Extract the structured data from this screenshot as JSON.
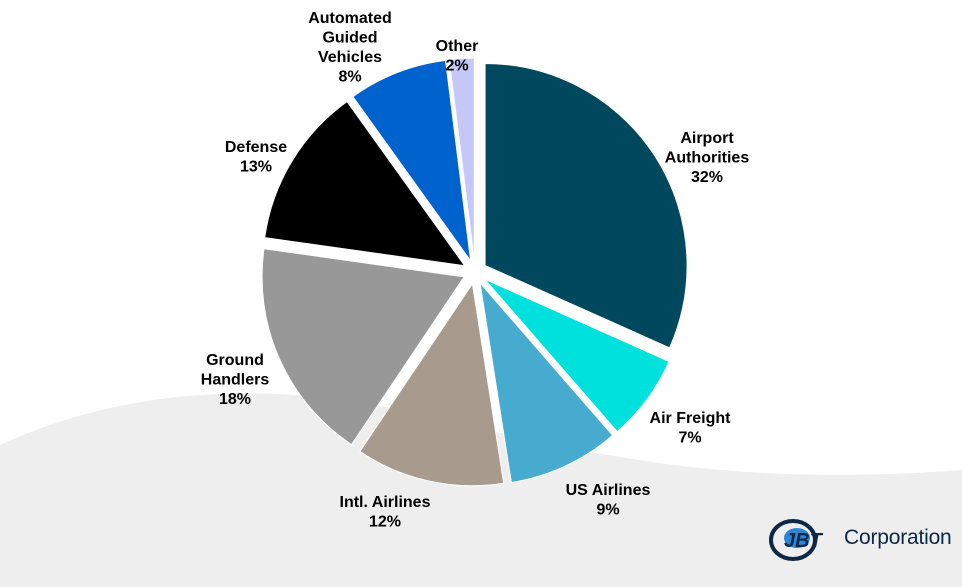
{
  "chart_data": {
    "type": "pie",
    "title": "",
    "exploded": true,
    "slices": [
      {
        "label": [
          "Airport",
          "Authorities"
        ],
        "value": 32,
        "percent_label": "32%",
        "color": "#00485E"
      },
      {
        "label": [
          "Air Freight"
        ],
        "value": 7,
        "percent_label": "7%",
        "color": "#00E0DC"
      },
      {
        "label": [
          "US Airlines"
        ],
        "value": 9,
        "percent_label": "9%",
        "color": "#47ABD0"
      },
      {
        "label": [
          "Intl. Airlines"
        ],
        "value": 12,
        "percent_label": "12%",
        "color": "#A89B8D"
      },
      {
        "label": [
          "Ground",
          "Handlers"
        ],
        "value": 18,
        "percent_label": "18%",
        "color": "#989898"
      },
      {
        "label": [
          "Defense"
        ],
        "value": 13,
        "percent_label": "13%",
        "color": "#000000"
      },
      {
        "label": [
          "Automated",
          "Guided",
          "Vehicles"
        ],
        "value": 8,
        "percent_label": "8%",
        "color": "#0062CC"
      },
      {
        "label": [
          "Other"
        ],
        "value": 2,
        "percent_label": "2%",
        "color": "#C5C8F7"
      }
    ]
  },
  "logo": {
    "brand": "JBT",
    "text": "Corporation",
    "colors": {
      "primary": "#0d2747",
      "accent": "#2c86d6"
    }
  },
  "background": {
    "wave_color": "#eeeeee"
  }
}
